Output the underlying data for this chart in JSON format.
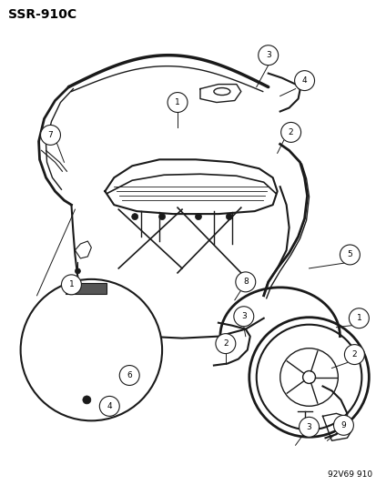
{
  "title": "SSR-910C",
  "footer": "92V69 910",
  "bg_color": "#ffffff",
  "line_color": "#1a1a1a",
  "title_fontsize": 10,
  "footer_fontsize": 6.5,
  "figsize": [
    4.14,
    5.33
  ],
  "dpi": 100,
  "callout_r": 0.025,
  "callout_fontsize": 6.5
}
